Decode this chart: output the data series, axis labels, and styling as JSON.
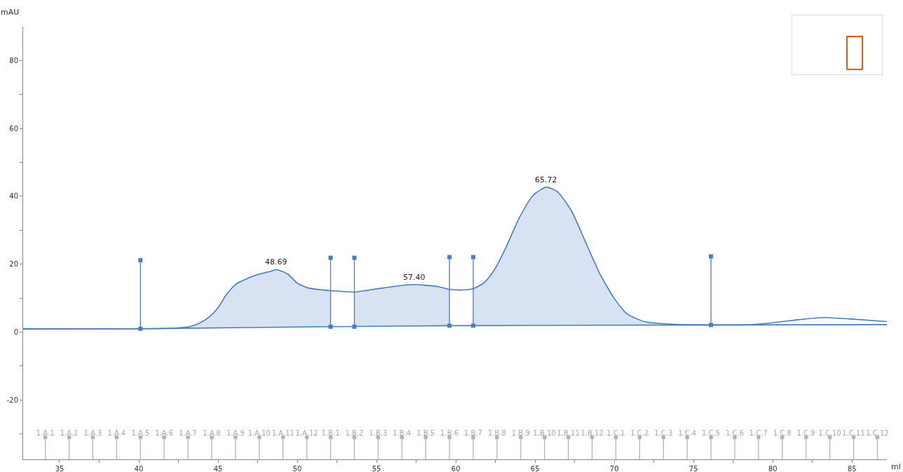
{
  "chart_data": {
    "type": "line",
    "xlabel": "ml",
    "ylabel": "mAU",
    "xlim": [
      32.7,
      87.2
    ],
    "ylim": [
      -37.5,
      90
    ],
    "xticks": [
      {
        "value": 35,
        "label": "35"
      },
      {
        "value": 37.5,
        "label": null
      },
      {
        "value": 40,
        "label": "40"
      },
      {
        "value": 42.5,
        "label": null
      },
      {
        "value": 45,
        "label": "45"
      },
      {
        "value": 47.5,
        "label": null
      },
      {
        "value": 50,
        "label": "50"
      },
      {
        "value": 52.5,
        "label": null
      },
      {
        "value": 55,
        "label": "55"
      },
      {
        "value": 57.5,
        "label": null
      },
      {
        "value": 60,
        "label": "60"
      },
      {
        "value": 62.5,
        "label": null
      },
      {
        "value": 65,
        "label": "65"
      },
      {
        "value": 67.5,
        "label": null
      },
      {
        "value": 70,
        "label": "70"
      },
      {
        "value": 72.5,
        "label": null
      },
      {
        "value": 75,
        "label": "75"
      },
      {
        "value": 77.5,
        "label": null
      },
      {
        "value": 80,
        "label": "80"
      },
      {
        "value": 82.5,
        "label": null
      },
      {
        "value": 85,
        "label": "85"
      }
    ],
    "yticks": [
      {
        "value": -30,
        "label": null
      },
      -20,
      {
        "value": -10,
        "label": null
      },
      0,
      {
        "value": 10,
        "label": null
      },
      20,
      {
        "value": 30,
        "label": null
      },
      40,
      {
        "value": 50,
        "label": null
      },
      60,
      {
        "value": 70,
        "label": null
      },
      80
    ],
    "grid": false,
    "marker": "none",
    "line_style": "solid",
    "series": [
      {
        "color": "#4a7bc4",
        "x": [
          32.7,
          40.1,
          42.3,
          43.2,
          43.85,
          44.4,
          45.0,
          45.5,
          46.1,
          47.2,
          48.3,
          48.7,
          49.4,
          50.0,
          50.7,
          52.1,
          52.8,
          53.6,
          55.1,
          56.7,
          57.4,
          58.9,
          59.6,
          60.4,
          61.1,
          61.8,
          62.4,
          63.1,
          64.0,
          64.9,
          65.7,
          66.4,
          67.3,
          68.2,
          69.1,
          70.0,
          70.8,
          71.9,
          73.7,
          76.1,
          78.1,
          79.9,
          81.7,
          83.2,
          84.8,
          87.2
        ],
        "values": [
          1.0,
          1.0,
          1.2,
          1.6,
          2.7,
          4.3,
          7.2,
          10.9,
          14.0,
          16.5,
          17.9,
          18.4,
          17.1,
          14.4,
          13.0,
          12.2,
          12.0,
          11.8,
          12.8,
          13.8,
          14.0,
          13.4,
          12.6,
          12.4,
          12.8,
          14.6,
          18.1,
          24.3,
          33.6,
          40.4,
          42.7,
          41.4,
          35.7,
          26.4,
          17.1,
          9.9,
          5.4,
          3.1,
          2.3,
          2.1,
          2.1,
          2.7,
          3.7,
          4.3,
          3.9,
          3.1
        ],
        "lower": [
          null,
          1.0,
          1.1,
          1.2,
          1.2,
          1.2,
          1.2,
          1.3,
          1.3,
          1.4,
          1.4,
          1.4,
          1.5,
          1.5,
          1.5,
          1.6,
          null,
          1.6,
          1.7,
          1.8,
          1.8,
          1.9,
          1.9,
          null,
          1.9,
          1.9,
          1.9,
          1.9,
          2.0,
          2.0,
          2.0,
          2.0,
          2.0,
          2.0,
          2.0,
          2.0,
          2.0,
          2.1,
          2.1,
          2.1,
          null,
          null,
          null,
          null,
          null,
          null
        ],
        "upper": [
          null,
          1.0,
          1.2,
          1.6,
          2.7,
          4.3,
          7.2,
          10.9,
          14.0,
          16.5,
          17.9,
          18.4,
          17.1,
          14.4,
          13.0,
          12.2,
          null,
          11.8,
          12.8,
          13.8,
          14.0,
          13.4,
          12.6,
          null,
          12.8,
          14.6,
          18.1,
          24.3,
          33.6,
          40.4,
          42.7,
          41.4,
          35.7,
          26.4,
          17.1,
          9.9,
          5.4,
          3.1,
          2.3,
          2.1,
          null,
          null,
          null,
          null,
          null,
          null
        ]
      },
      {
        "color": "#4a7bc4",
        "x": [
          32.7,
          40.1,
          52.1,
          59.6,
          76.1,
          87.2
        ],
        "values": [
          0.9,
          1.0,
          1.6,
          1.9,
          2.1,
          2.2
        ]
      },
      {
        "type": "scatter",
        "color": "#4a7bc4",
        "marker": "square",
        "x": [
          40.1,
          52.1,
          53.6,
          59.6,
          61.1,
          76.1
        ],
        "values": [
          21.2,
          21.9,
          21.9,
          22.1,
          22.1,
          22.3
        ],
        "errors": [
          [
            1.0,
            21.2
          ],
          [
            1.6,
            21.9
          ],
          [
            1.6,
            21.9
          ],
          [
            1.9,
            22.1
          ],
          [
            1.9,
            22.1
          ],
          [
            2.1,
            22.3
          ]
        ]
      },
      {
        "type": "scatter",
        "color": "#4a7bc4",
        "marker": "square",
        "x": [
          40.1,
          52.1,
          53.6,
          59.6,
          61.1,
          76.1
        ],
        "values": [
          1.0,
          1.6,
          1.6,
          1.9,
          1.9,
          2.1
        ]
      },
      {
        "type": "scatter",
        "color": "#b4b4b4",
        "marker": "circle",
        "x": [
          34.1,
          35.6,
          37.1,
          38.6,
          40.1,
          41.6,
          43.1,
          44.6,
          46.1,
          47.6,
          49.1,
          50.6,
          52.1,
          53.6,
          55.1,
          56.6,
          58.1,
          59.6,
          61.1,
          62.6,
          64.1,
          65.6,
          67.1,
          68.6,
          70.1,
          71.6,
          73.1,
          74.6,
          76.1,
          77.6,
          79.1,
          80.6,
          82.1,
          83.6,
          85.1,
          86.6
        ],
        "values": [
          -31,
          -31,
          -31,
          -31,
          -31,
          -31,
          -31,
          -31,
          -31,
          -31,
          -31,
          -31,
          -31,
          -31,
          -31,
          -31,
          -31,
          -31,
          -31,
          -31,
          -31,
          -31,
          -31,
          -31,
          -31,
          -31,
          -31,
          -31,
          -31,
          -31,
          -31,
          -31,
          -31,
          -31,
          -31,
          -31
        ],
        "errors": [
          [
            -37.5,
            -31
          ],
          [
            -37.5,
            -31
          ],
          [
            -37.5,
            -31
          ],
          [
            -37.5,
            -31
          ],
          [
            -37.5,
            -31
          ],
          [
            -37.5,
            -31
          ],
          [
            -37.5,
            -31
          ],
          [
            -37.5,
            -31
          ],
          [
            -37.5,
            -31
          ],
          [
            -37.5,
            -31
          ],
          [
            -37.5,
            -31
          ],
          [
            -37.5,
            -31
          ],
          [
            -37.5,
            -31
          ],
          [
            -37.5,
            -31
          ],
          [
            -37.5,
            -31
          ],
          [
            -37.5,
            -31
          ],
          [
            -37.5,
            -31
          ],
          [
            -37.5,
            -31
          ],
          [
            -37.5,
            -31
          ],
          [
            -37.5,
            -31
          ],
          [
            -37.5,
            -31
          ],
          [
            -37.5,
            -31
          ],
          [
            -37.5,
            -31
          ],
          [
            -37.5,
            -31
          ],
          [
            -37.5,
            -31
          ],
          [
            -37.5,
            -31
          ],
          [
            -37.5,
            -31
          ],
          [
            -37.5,
            -31
          ],
          [
            -37.5,
            -31
          ],
          [
            -37.5,
            -31
          ],
          [
            -37.5,
            -31
          ],
          [
            -37.5,
            -31
          ],
          [
            -37.5,
            -31
          ],
          [
            -37.5,
            -31
          ],
          [
            -37.5,
            -31
          ],
          [
            -37.5,
            -31
          ]
        ],
        "value_labels": [
          "1.A.1",
          "1.A.2",
          "1.A.3",
          "1.A.4",
          "1.A.5",
          "1.A.6",
          "1.A.7",
          "1.A.8",
          "1.A.9",
          "1.A.10",
          "1.A.11",
          "1.A.12",
          "1.B.1",
          "1.B.2",
          "1.B.3",
          "1.B.4",
          "1.B.5",
          "1.B.6",
          "1.B.7",
          "1.B.8",
          "1.B.9",
          "1.B.10",
          "1.B.11",
          "1.B.12",
          "1.C.1",
          "1.C.2",
          "1.C.3",
          "1.C.4",
          "1.C.5",
          "1.C.6",
          "1.C.7",
          "1.C.8",
          "1.C.9",
          "1.C.10",
          "1.C.11",
          "1.C.12"
        ]
      }
    ],
    "annotations": [
      {
        "text": "48.69",
        "x": 48.69,
        "y": 18.4
      },
      {
        "text": "57.40",
        "x": 57.4,
        "y": 14.0
      },
      {
        "text": "65.72",
        "x": 65.72,
        "y": 42.7
      }
    ]
  }
}
